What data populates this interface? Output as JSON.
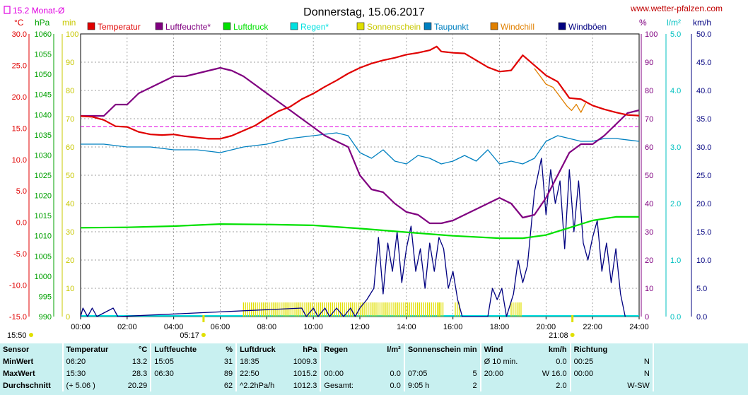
{
  "header": {
    "title": "Donnerstag, 15.06.2017",
    "website": "www.wetter-pfalzen.com",
    "monthly_avg_label": "15.2 Monat-Ø"
  },
  "units": {
    "temp": "°C",
    "pressure": "hPa",
    "minutes": "min",
    "percent": "%",
    "rain": "l/m²",
    "speed": "km/h"
  },
  "legend": [
    {
      "name": "Temperatur",
      "color": "#e00000"
    },
    {
      "name": "Luftfeuchte*",
      "color": "#800080"
    },
    {
      "name": "Luftdruck",
      "color": "#00e000"
    },
    {
      "name": "Regen*",
      "color": "#00e0e0"
    },
    {
      "name": "Sonnenschein",
      "color": "#e0e000"
    },
    {
      "name": "Taupunkt",
      "color": "#0080c0"
    },
    {
      "name": "Windchill",
      "color": "#e08000"
    },
    {
      "name": "Windböen",
      "color": "#000080"
    }
  ],
  "sun": {
    "sunrise": "05:17",
    "sunset": "21:08",
    "left_time": "15:50"
  },
  "chart_data": {
    "type": "line",
    "x_label": "hours",
    "x_ticks": [
      "00:00",
      "02:00",
      "04:00",
      "06:00",
      "08:00",
      "10:00",
      "12:00",
      "14:00",
      "16:00",
      "18:00",
      "20:00",
      "22:00",
      "24:00"
    ],
    "axes": {
      "temp": {
        "min": -15,
        "max": 30,
        "ticks": [
          "30.0",
          "25.0",
          "20.0",
          "15.0",
          "10.0",
          "5.0",
          "0.0",
          "-5.0",
          "-10.0",
          "-15.0"
        ]
      },
      "pressure": {
        "min": 990,
        "max": 1060,
        "ticks": [
          "1060",
          "1055",
          "1050",
          "1045",
          "1040",
          "1035",
          "1030",
          "1025",
          "1020",
          "1015",
          "1010",
          "1005",
          "1000",
          "995",
          "990"
        ]
      },
      "minutes": {
        "min": 0,
        "max": 100,
        "ticks": [
          "100",
          "90",
          "80",
          "70",
          "60",
          "50",
          "40",
          "30",
          "20",
          "10",
          "0"
        ]
      },
      "percent": {
        "min": 0,
        "max": 100,
        "ticks": [
          "100",
          "90",
          "80",
          "70",
          "60",
          "50",
          "40",
          "30",
          "20",
          "10",
          "0"
        ]
      },
      "rain": {
        "min": 0,
        "max": 5,
        "ticks": [
          "5.0",
          "4.0",
          "3.0",
          "2.0",
          "1.0",
          "0.0"
        ]
      },
      "speed": {
        "min": 0,
        "max": 50,
        "ticks": [
          "50.0",
          "45.0",
          "40.0",
          "35.0",
          "30.0",
          "25.0",
          "20.0",
          "15.0",
          "10.0",
          "5.0",
          "0.0"
        ]
      }
    },
    "monthly_avg_temp": 15.2,
    "series": [
      {
        "name": "Temperatur",
        "axis": "temp",
        "points": [
          [
            0,
            16.9
          ],
          [
            0.5,
            16.8
          ],
          [
            1,
            16.3
          ],
          [
            1.5,
            15.3
          ],
          [
            2,
            15.2
          ],
          [
            2.5,
            14.4
          ],
          [
            3,
            14.0
          ],
          [
            3.5,
            13.9
          ],
          [
            4,
            14.0
          ],
          [
            4.5,
            13.7
          ],
          [
            5,
            13.5
          ],
          [
            5.5,
            13.3
          ],
          [
            6,
            13.3
          ],
          [
            6.5,
            13.8
          ],
          [
            7,
            14.6
          ],
          [
            7.5,
            15.4
          ],
          [
            8,
            16.6
          ],
          [
            8.5,
            17.7
          ],
          [
            9,
            18.4
          ],
          [
            9.5,
            19.6
          ],
          [
            10,
            20.5
          ],
          [
            10.5,
            21.6
          ],
          [
            11,
            22.6
          ],
          [
            11.5,
            23.7
          ],
          [
            12,
            24.6
          ],
          [
            12.5,
            25.3
          ],
          [
            13,
            25.8
          ],
          [
            13.5,
            26.2
          ],
          [
            14,
            26.7
          ],
          [
            14.5,
            27.0
          ],
          [
            15,
            27.4
          ],
          [
            15.3,
            28.0
          ],
          [
            15.5,
            27.2
          ],
          [
            16,
            27.0
          ],
          [
            16.5,
            26.9
          ],
          [
            17,
            25.8
          ],
          [
            17.5,
            24.7
          ],
          [
            18,
            24.0
          ],
          [
            18.5,
            24.2
          ],
          [
            19,
            26.6
          ],
          [
            19.5,
            25.0
          ],
          [
            20,
            23.4
          ],
          [
            20.5,
            22.4
          ],
          [
            21,
            19.8
          ],
          [
            21.5,
            19.6
          ],
          [
            22,
            18.6
          ],
          [
            22.5,
            18.0
          ],
          [
            23,
            17.5
          ],
          [
            23.5,
            17.1
          ],
          [
            24,
            17.0
          ]
        ]
      },
      {
        "name": "Windchill",
        "axis": "temp",
        "points": [
          [
            19.5,
            24.5
          ],
          [
            19.8,
            23.0
          ],
          [
            20,
            22.0
          ],
          [
            20.3,
            21.5
          ],
          [
            20.6,
            20.0
          ],
          [
            20.9,
            18.5
          ],
          [
            21.1,
            17.8
          ],
          [
            21.3,
            18.8
          ],
          [
            21.5,
            17.5
          ],
          [
            21.7,
            19.0
          ]
        ]
      },
      {
        "name": "Luftfeuchte*",
        "axis": "percent",
        "points": [
          [
            0,
            71
          ],
          [
            1,
            71
          ],
          [
            1.5,
            75
          ],
          [
            2,
            75
          ],
          [
            2.5,
            79
          ],
          [
            3,
            81
          ],
          [
            3.5,
            83
          ],
          [
            4,
            85
          ],
          [
            4.5,
            85
          ],
          [
            5,
            86
          ],
          [
            5.5,
            87
          ],
          [
            6,
            88
          ],
          [
            6.5,
            87
          ],
          [
            7,
            85
          ],
          [
            7.5,
            82
          ],
          [
            8,
            79
          ],
          [
            8.5,
            76
          ],
          [
            9,
            73
          ],
          [
            9.5,
            70
          ],
          [
            10,
            67
          ],
          [
            10.5,
            64
          ],
          [
            11,
            62
          ],
          [
            11.5,
            60
          ],
          [
            12,
            50
          ],
          [
            12.5,
            45
          ],
          [
            13,
            44
          ],
          [
            13.5,
            40
          ],
          [
            14,
            37
          ],
          [
            14.5,
            36
          ],
          [
            15,
            33
          ],
          [
            15.5,
            33
          ],
          [
            16,
            34
          ],
          [
            16.5,
            36
          ],
          [
            17,
            38
          ],
          [
            17.5,
            40
          ],
          [
            18,
            42
          ],
          [
            18.5,
            40
          ],
          [
            19,
            35
          ],
          [
            19.5,
            36
          ],
          [
            20,
            42
          ],
          [
            20.5,
            50
          ],
          [
            21,
            58
          ],
          [
            21.5,
            61
          ],
          [
            22,
            61
          ],
          [
            22.5,
            64
          ],
          [
            23,
            68
          ],
          [
            23.5,
            72
          ],
          [
            24,
            73
          ]
        ]
      },
      {
        "name": "Taupunkt",
        "axis": "percent",
        "points": [
          [
            0,
            61
          ],
          [
            1,
            61
          ],
          [
            2,
            60
          ],
          [
            3,
            60
          ],
          [
            4,
            59
          ],
          [
            5,
            59
          ],
          [
            6,
            58
          ],
          [
            7,
            60
          ],
          [
            8,
            61
          ],
          [
            9,
            63
          ],
          [
            10,
            64
          ],
          [
            11,
            65
          ],
          [
            11.5,
            64
          ],
          [
            12,
            58
          ],
          [
            12.5,
            56
          ],
          [
            13,
            59
          ],
          [
            13.5,
            55
          ],
          [
            14,
            54
          ],
          [
            14.5,
            57
          ],
          [
            15,
            56
          ],
          [
            15.5,
            54
          ],
          [
            16,
            55
          ],
          [
            16.5,
            57
          ],
          [
            17,
            55
          ],
          [
            17.5,
            59
          ],
          [
            18,
            54
          ],
          [
            18.5,
            55
          ],
          [
            19,
            54
          ],
          [
            19.5,
            56
          ],
          [
            20,
            62
          ],
          [
            20.5,
            64
          ],
          [
            21,
            63
          ],
          [
            21.5,
            62
          ],
          [
            22,
            62
          ],
          [
            22.5,
            63
          ],
          [
            23,
            63
          ],
          [
            24,
            62
          ]
        ]
      },
      {
        "name": "Luftdruck",
        "axis": "pressure",
        "points": [
          [
            0,
            1012.0
          ],
          [
            2,
            1012.1
          ],
          [
            4,
            1012.4
          ],
          [
            6,
            1012.9
          ],
          [
            8,
            1012.8
          ],
          [
            10,
            1012.6
          ],
          [
            12,
            1011.8
          ],
          [
            14,
            1010.9
          ],
          [
            16,
            1010.0
          ],
          [
            18,
            1009.4
          ],
          [
            19,
            1009.4
          ],
          [
            20,
            1010.2
          ],
          [
            21,
            1012.0
          ],
          [
            22,
            1013.8
          ],
          [
            23,
            1014.7
          ],
          [
            24,
            1014.7
          ]
        ]
      },
      {
        "name": "Windböen",
        "axis": "speed",
        "points": [
          [
            0,
            0
          ],
          [
            0.1,
            1.5
          ],
          [
            0.3,
            0
          ],
          [
            0.5,
            1.5
          ],
          [
            0.7,
            0
          ],
          [
            1.4,
            1.5
          ],
          [
            1.6,
            0
          ],
          [
            9.5,
            1.5
          ],
          [
            9.7,
            0
          ],
          [
            10,
            1.5
          ],
          [
            10.2,
            0
          ],
          [
            10.5,
            1.5
          ],
          [
            10.7,
            0
          ],
          [
            11,
            1.5
          ],
          [
            11.3,
            0
          ],
          [
            11.6,
            1.5
          ],
          [
            11.8,
            0
          ],
          [
            12.0,
            1.5
          ],
          [
            12.3,
            3.0
          ],
          [
            12.6,
            5.0
          ],
          [
            12.8,
            14.0
          ],
          [
            13.0,
            4.0
          ],
          [
            13.2,
            13.0
          ],
          [
            13.4,
            8.0
          ],
          [
            13.6,
            15.0
          ],
          [
            13.8,
            6.0
          ],
          [
            14.0,
            12.0
          ],
          [
            14.2,
            16.0
          ],
          [
            14.4,
            8.0
          ],
          [
            14.6,
            12.0
          ],
          [
            14.8,
            5.0
          ],
          [
            15.0,
            13.0
          ],
          [
            15.2,
            8.0
          ],
          [
            15.4,
            14.0
          ],
          [
            15.6,
            12.0
          ],
          [
            15.8,
            5.0
          ],
          [
            16.0,
            8.0
          ],
          [
            16.2,
            3.0
          ],
          [
            16.4,
            0
          ],
          [
            17.5,
            0
          ],
          [
            17.7,
            5.0
          ],
          [
            17.9,
            3.0
          ],
          [
            18.1,
            5.0
          ],
          [
            18.3,
            0
          ],
          [
            18.6,
            4.0
          ],
          [
            18.8,
            10.0
          ],
          [
            19.0,
            6.0
          ],
          [
            19.2,
            9.0
          ],
          [
            19.5,
            22.0
          ],
          [
            19.8,
            28.0
          ],
          [
            20.0,
            18.0
          ],
          [
            20.2,
            26.0
          ],
          [
            20.4,
            20.0
          ],
          [
            20.6,
            24.0
          ],
          [
            20.8,
            12.0
          ],
          [
            21.0,
            26.0
          ],
          [
            21.2,
            15.0
          ],
          [
            21.4,
            24.0
          ],
          [
            21.6,
            13.0
          ],
          [
            21.8,
            10.0
          ],
          [
            22.0,
            14.0
          ],
          [
            22.2,
            17.0
          ],
          [
            22.4,
            8.0
          ],
          [
            22.6,
            13.0
          ],
          [
            22.8,
            6.0
          ],
          [
            23.0,
            12.0
          ],
          [
            23.2,
            4.0
          ],
          [
            23.4,
            0
          ]
        ]
      },
      {
        "name": "Sonnenschein",
        "axis": "minutes",
        "type": "bars",
        "ranges": [
          [
            7.0,
            15.5
          ],
          [
            15.4,
            15.6
          ],
          [
            16.1,
            16.3
          ],
          [
            18.5,
            19.0
          ]
        ],
        "height": 5
      }
    ]
  },
  "stats": {
    "headers": {
      "sensor": "Sensor",
      "temp": "Temperatur",
      "temp_unit": "°C",
      "hum": "Luftfeuchte",
      "hum_unit": "%",
      "press": "Luftdruck",
      "press_unit": "hPa",
      "rain": "Regen",
      "rain_unit": "l/m²",
      "sun": "Sonnenschein min",
      "wind": "Wind",
      "wind_unit": "km/h",
      "dir": "Richtung"
    },
    "rows": [
      {
        "label": "MinWert",
        "t_time": "06:20",
        "t_val": "13.2",
        "h_time": "15:05",
        "h_val": "31",
        "p_time": "18:35",
        "p_val": "1009.3",
        "r_time": "",
        "r_val": "",
        "s_time": "",
        "s_val": "",
        "w_time": "Ø 10 min.",
        "w_val": "0.0",
        "d_time": "00:25",
        "d_val": "N"
      },
      {
        "label": "MaxWert",
        "t_time": "15:30",
        "t_val": "28.3",
        "h_time": "06:30",
        "h_val": "89",
        "p_time": "22:50",
        "p_val": "1015.2",
        "r_time": "00:00",
        "r_val": "0.0",
        "s_time": "07:05",
        "s_val": "5",
        "w_time": "20:00",
        "w_val": "W 16.0",
        "d_time": "00:00",
        "d_val": "N"
      },
      {
        "label": "Durchschnitt",
        "t_time": "(+ 5.06 )",
        "t_val": "20.29",
        "h_time": "",
        "h_val": "62",
        "p_time": "^2.2hPa/h",
        "p_val": "1012.3",
        "r_time": "Gesamt:",
        "r_val": "0.0",
        "s_time": "9:05 h",
        "s_val": "2",
        "w_time": "",
        "w_val": "2.0",
        "d_time": "",
        "d_val": "W-SW"
      }
    ]
  }
}
